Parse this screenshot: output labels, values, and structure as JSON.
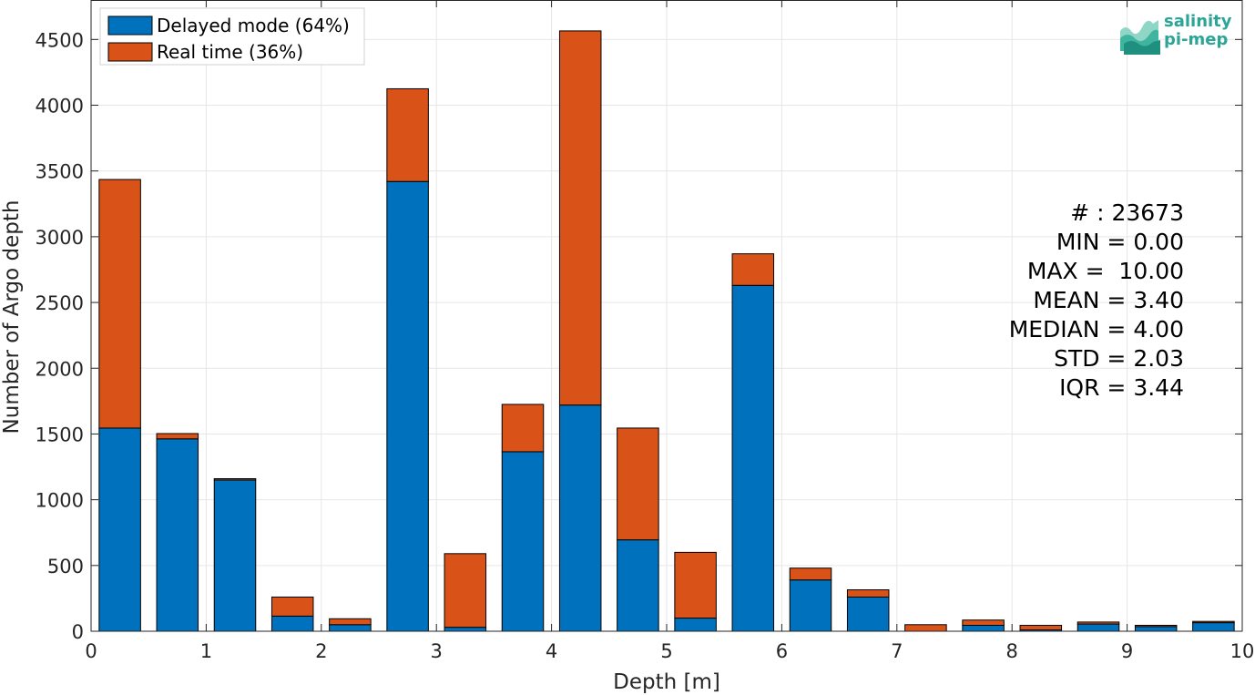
{
  "colors": {
    "delayed": "#0072BD",
    "realtime": "#D95319",
    "grid": "#e6e6e6",
    "axis": "#262626",
    "logo": "#2ba596"
  },
  "logo": {
    "line1": "salinity",
    "line2": "pi-mep",
    "icon": "wave-logo-icon"
  },
  "stats": {
    "count": "# : 23673",
    "min": "MIN = 0.00",
    "max": "MAX =  10.00",
    "mean": "MEAN = 3.40",
    "median": "MEDIAN = 4.00",
    "std": "STD = 2.03",
    "iqr": "IQR = 3.44"
  },
  "chart_data": {
    "type": "bar",
    "stacked": true,
    "xlabel": "Depth [m]",
    "ylabel": "Number of Argo depth",
    "xlim": [
      0,
      10
    ],
    "ylim": [
      0,
      4800
    ],
    "xticks": [
      0,
      1,
      2,
      3,
      4,
      5,
      6,
      7,
      8,
      9,
      10
    ],
    "yticks": [
      0,
      500,
      1000,
      1500,
      2000,
      2500,
      3000,
      3500,
      4000,
      4500
    ],
    "grid": true,
    "legend_position": "top-left",
    "bin_width": 0.5,
    "bar_width": 0.36,
    "bin_centers": [
      0.25,
      0.75,
      1.25,
      1.75,
      2.25,
      2.75,
      3.25,
      3.75,
      4.25,
      4.75,
      5.25,
      5.75,
      6.25,
      6.75,
      7.25,
      7.75,
      8.25,
      8.75,
      9.25,
      9.75
    ],
    "series": [
      {
        "name": "Delayed mode (64%)",
        "values": [
          1545,
          1463,
          1150,
          115,
          50,
          3420,
          30,
          1365,
          1720,
          695,
          100,
          2630,
          390,
          260,
          0,
          45,
          10,
          55,
          35,
          65
        ]
      },
      {
        "name": "Real time (36%)",
        "values": [
          1890,
          40,
          10,
          145,
          45,
          705,
          560,
          360,
          2845,
          850,
          500,
          240,
          90,
          55,
          50,
          40,
          35,
          15,
          10,
          10
        ]
      }
    ]
  }
}
